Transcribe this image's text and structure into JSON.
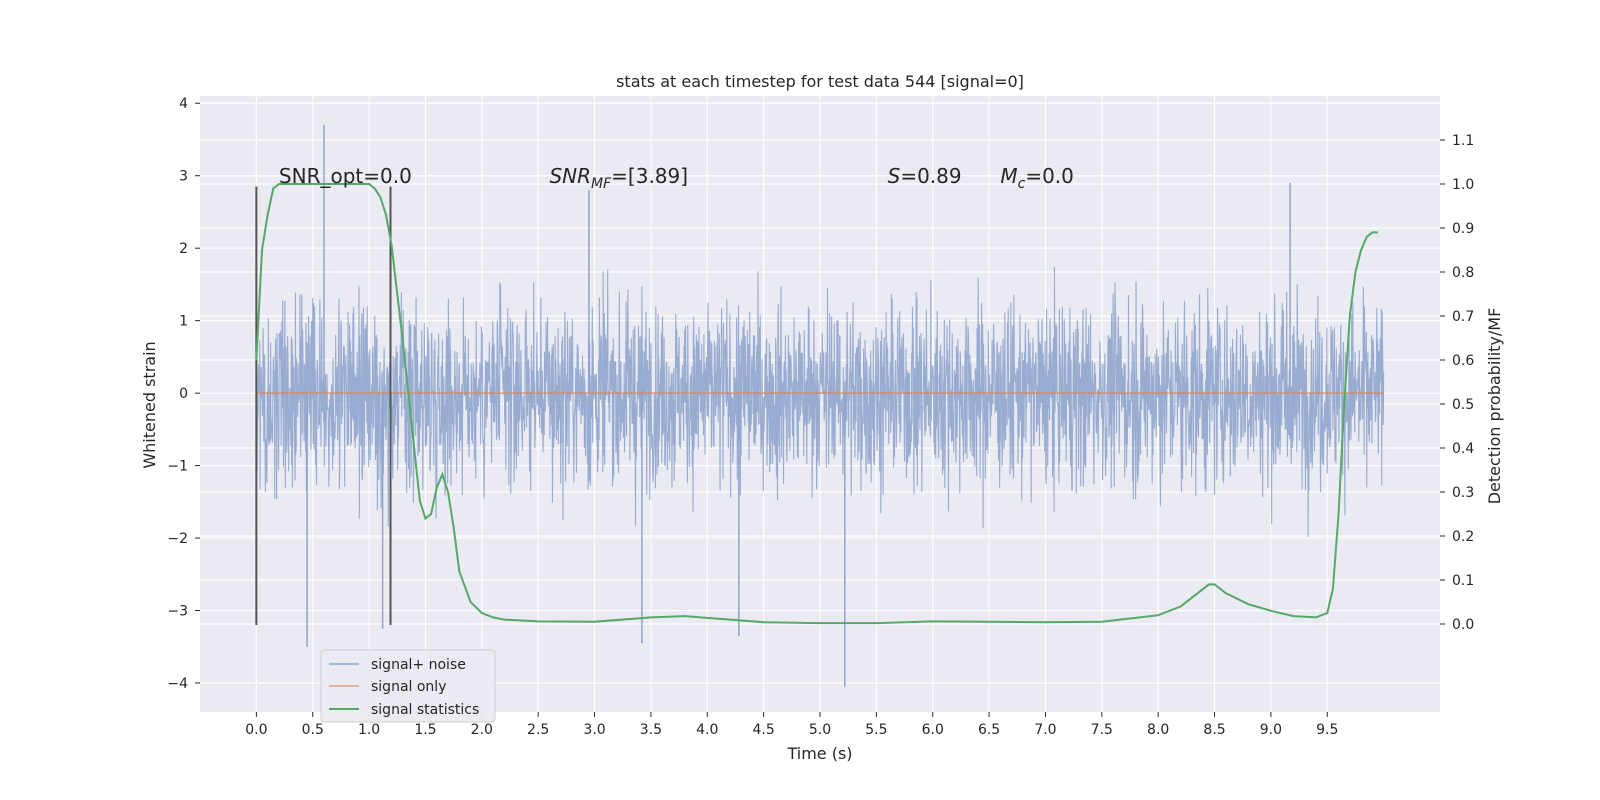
{
  "chart_data": {
    "type": "line",
    "title": "stats at each timestep for test data 544 [signal=0]",
    "xlabel": "Time (s)",
    "ylabel": "Whitened strain",
    "y2label": "Detection probability/MF",
    "xlim": [
      -0.5,
      10.5
    ],
    "ylim": [
      -4.4,
      4.1
    ],
    "y2lim": [
      -0.2,
      1.2
    ],
    "xticks": [
      0.0,
      0.5,
      1.0,
      1.5,
      2.0,
      2.5,
      3.0,
      3.5,
      4.0,
      4.5,
      5.0,
      5.5,
      6.0,
      6.5,
      7.0,
      7.5,
      8.0,
      8.5,
      9.0,
      9.5
    ],
    "xtick_labels": [
      "0.0",
      "0.5",
      "1.0",
      "1.5",
      "2.0",
      "2.5",
      "3.0",
      "3.5",
      "4.0",
      "4.5",
      "5.0",
      "5.5",
      "6.0",
      "6.5",
      "7.0",
      "7.5",
      "8.0",
      "8.5",
      "9.0",
      "9.5"
    ],
    "yticks": [
      -4,
      -3,
      -2,
      -1,
      0,
      1,
      2,
      3,
      4
    ],
    "ytick_labels": [
      "−4",
      "−3",
      "−2",
      "−1",
      "0",
      "1",
      "2",
      "3",
      "4"
    ],
    "y2ticks": [
      0.0,
      0.1,
      0.2,
      0.3,
      0.4,
      0.5,
      0.6,
      0.7,
      0.8,
      0.9,
      1.0,
      1.1
    ],
    "y2tick_labels": [
      "0.0",
      "0.1",
      "0.2",
      "0.3",
      "0.4",
      "0.5",
      "0.6",
      "0.7",
      "0.8",
      "0.9",
      "1.0",
      "1.1"
    ],
    "grid": true,
    "legend_position": "lower-left",
    "colors": {
      "noise": "#8fa4cc",
      "signal": "#dd8452",
      "stats": "#55a868",
      "marker": "#555555",
      "background": "#eaeaf2",
      "grid": "#ffffff"
    },
    "series": [
      {
        "name": "signal+ noise",
        "axis": "left",
        "noise_envelope": {
          "t_start": 0.0,
          "t_end": 10.0,
          "dense_band": [
            -1.4,
            1.4
          ],
          "typical_peak": [
            -2.4,
            2.6
          ],
          "extreme_points": [
            {
              "x": 0.6,
              "y": 3.7
            },
            {
              "x": 0.45,
              "y": -3.5
            },
            {
              "x": 2.95,
              "y": 2.8
            },
            {
              "x": 3.42,
              "y": -3.45
            },
            {
              "x": 5.22,
              "y": -4.05
            },
            {
              "x": 9.17,
              "y": 2.9
            },
            {
              "x": 1.12,
              "y": -3.25
            },
            {
              "x": 4.28,
              "y": -3.35
            }
          ]
        }
      },
      {
        "name": "signal only",
        "axis": "left",
        "x": [
          0.0,
          10.0
        ],
        "y": [
          0.0,
          0.0
        ]
      },
      {
        "name": "signal statistics",
        "axis": "right",
        "x": [
          0.0,
          0.05,
          0.1,
          0.15,
          0.2,
          0.3,
          0.5,
          0.7,
          0.9,
          1.0,
          1.05,
          1.1,
          1.15,
          1.2,
          1.3,
          1.4,
          1.45,
          1.5,
          1.55,
          1.6,
          1.65,
          1.7,
          1.75,
          1.8,
          1.9,
          2.0,
          2.1,
          2.2,
          2.5,
          3.0,
          3.5,
          3.8,
          4.2,
          4.5,
          5.0,
          5.5,
          6.0,
          6.5,
          7.0,
          7.5,
          8.0,
          8.2,
          8.35,
          8.45,
          8.5,
          8.6,
          8.8,
          9.0,
          9.2,
          9.4,
          9.5,
          9.55,
          9.6,
          9.65,
          9.7,
          9.75,
          9.8,
          9.85,
          9.9,
          9.95
        ],
        "y": [
          0.6,
          0.85,
          0.93,
          0.99,
          1.0,
          1.0,
          1.0,
          1.0,
          1.0,
          1.0,
          0.99,
          0.97,
          0.93,
          0.86,
          0.64,
          0.4,
          0.28,
          0.24,
          0.25,
          0.31,
          0.34,
          0.3,
          0.22,
          0.12,
          0.05,
          0.025,
          0.015,
          0.01,
          0.006,
          0.005,
          0.015,
          0.018,
          0.01,
          0.004,
          0.002,
          0.002,
          0.006,
          0.005,
          0.004,
          0.005,
          0.02,
          0.04,
          0.07,
          0.09,
          0.09,
          0.07,
          0.045,
          0.03,
          0.018,
          0.015,
          0.025,
          0.08,
          0.25,
          0.5,
          0.7,
          0.8,
          0.85,
          0.88,
          0.89,
          0.89
        ]
      }
    ],
    "vlines": [
      {
        "x": 0.0,
        "ymin": -3.2,
        "ymax": 2.85
      },
      {
        "x": 1.19,
        "ymin": -3.2,
        "ymax": 2.85
      }
    ],
    "annotations": [
      {
        "x": 0.2,
        "y": 2.9,
        "text": "SNR_opt=0.0",
        "style": "plain"
      },
      {
        "x": 2.6,
        "y": 2.9,
        "base": "SNR",
        "sub": "MF",
        "rest": "=[3.89]",
        "style": "math"
      },
      {
        "x": 5.6,
        "y": 2.9,
        "base": "S",
        "sub": "",
        "rest": "=0.89",
        "style": "math"
      },
      {
        "x": 6.6,
        "y": 2.9,
        "base": "M",
        "sub": "c",
        "rest": "=0.0",
        "style": "math"
      }
    ]
  }
}
